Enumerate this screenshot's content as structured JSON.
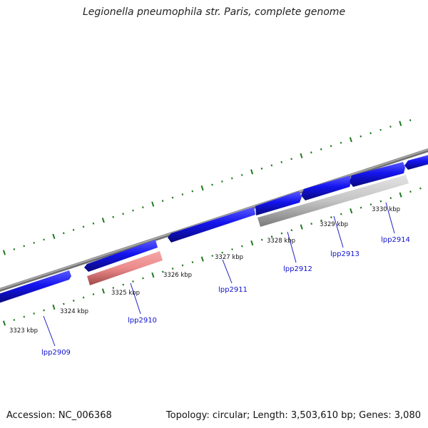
{
  "title": "Legionella pneumophila str. Paris, complete genome",
  "footer": {
    "accession": "Accession: NC_006368",
    "summary": "Topology: circular; Length: 3,503,610 bp; Genes: 3,080"
  },
  "colors": {
    "background": "#ffffff",
    "backbone": "#8a8a8a",
    "forward_gene": "#1414ee",
    "reverse_gene": "#1414ee",
    "highlighted_gene": "#ec8a8a",
    "pseudo_gene": "#c4c4c4",
    "tick_mark": "#1f7a1f",
    "gene_label": "#1010cc"
  },
  "scale_ticks": [
    {
      "label": "3323 kbp"
    },
    {
      "label": "3324 kbp"
    },
    {
      "label": "3325 kbp"
    },
    {
      "label": "3326 kbp"
    },
    {
      "label": "3327 kbp"
    },
    {
      "label": "3328 kbp"
    },
    {
      "label": "3329 kbp"
    },
    {
      "label": "3330 kbp"
    }
  ],
  "genes": [
    {
      "label": "lpp2909"
    },
    {
      "label": "lpp2910"
    },
    {
      "label": "lpp2911"
    },
    {
      "label": "lpp2912"
    },
    {
      "label": "lpp2913"
    },
    {
      "label": "lpp2914"
    }
  ]
}
